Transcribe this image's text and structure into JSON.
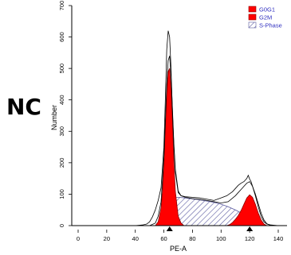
{
  "panel_label": "NC",
  "chart_data": {
    "type": "area",
    "title": "",
    "xlabel": "PE-A",
    "ylabel": "Number",
    "xlim": [
      -5,
      150
    ],
    "ylim": [
      0,
      700
    ],
    "x_ticks": [
      0,
      20,
      40,
      60,
      80,
      100,
      120,
      140
    ],
    "y_ticks": [
      0,
      100,
      200,
      300,
      400,
      500,
      600,
      700
    ],
    "grid": false,
    "legend_position": "top-right",
    "colors": {
      "G0G1": "#ff0000",
      "G2M": "#ff0000",
      "S-Phase": "#5a5aa0",
      "histogram": "#000000",
      "fit": "#000000"
    },
    "series": [
      {
        "name": "G0G1",
        "x": [
          54,
          56,
          58,
          59,
          60,
          61,
          62,
          63,
          64,
          65,
          66,
          67,
          68,
          70,
          72,
          74
        ],
        "y": [
          0,
          12,
          55,
          110,
          200,
          310,
          420,
          490,
          500,
          440,
          330,
          200,
          110,
          30,
          8,
          0
        ]
      },
      {
        "name": "G2M",
        "x": [
          104,
          106,
          108,
          110,
          112,
          114,
          116,
          118,
          120,
          122,
          124,
          126,
          128,
          130,
          132
        ],
        "y": [
          0,
          3,
          10,
          20,
          32,
          48,
          68,
          88,
          98,
          90,
          68,
          40,
          18,
          5,
          0
        ]
      },
      {
        "name": "S-Phase",
        "x": [
          58,
          60,
          62,
          65,
          70,
          75,
          80,
          85,
          90,
          95,
          100,
          105,
          110,
          115,
          120,
          124,
          128
        ],
        "y": [
          0,
          35,
          70,
          90,
          90,
          88,
          85,
          82,
          78,
          74,
          68,
          60,
          50,
          38,
          22,
          8,
          0
        ]
      },
      {
        "name": "Histogram",
        "x": [
          40,
          45,
          48,
          50,
          52,
          54,
          56,
          58,
          60,
          61,
          62,
          63,
          64,
          65,
          66,
          67,
          68,
          70,
          72,
          75,
          80,
          85,
          90,
          95,
          100,
          104,
          108,
          110,
          112,
          114,
          116,
          118,
          119,
          120,
          121,
          122,
          124,
          126,
          128,
          130,
          132,
          135,
          140
        ],
        "y": [
          0,
          2,
          5,
          12,
          28,
          50,
          80,
          120,
          250,
          400,
          560,
          620,
          600,
          500,
          360,
          250,
          170,
          105,
          95,
          92,
          90,
          88,
          84,
          80,
          88,
          95,
          108,
          118,
          128,
          135,
          140,
          150,
          160,
          148,
          140,
          125,
          95,
          60,
          30,
          12,
          5,
          2,
          0
        ]
      },
      {
        "name": "Fit",
        "x": [
          50,
          54,
          56,
          58,
          60,
          61,
          62,
          63,
          64,
          65,
          66,
          67,
          68,
          70,
          72,
          75,
          80,
          85,
          90,
          95,
          100,
          105,
          110,
          112,
          114,
          116,
          118,
          120,
          122,
          124,
          126,
          128,
          130,
          132,
          135
        ],
        "y": [
          0,
          8,
          30,
          75,
          215,
          330,
          450,
          525,
          540,
          475,
          370,
          260,
          180,
          110,
          95,
          90,
          86,
          83,
          80,
          76,
          72,
          76,
          95,
          105,
          115,
          125,
          135,
          140,
          125,
          100,
          70,
          40,
          18,
          6,
          0
        ]
      }
    ],
    "markers": [
      {
        "x": 64,
        "shape": "triangle-up"
      },
      {
        "x": 120,
        "shape": "triangle-up"
      }
    ],
    "legend": [
      {
        "label": "G0G1",
        "style": "solid"
      },
      {
        "label": "G2M",
        "style": "solid"
      },
      {
        "label": "S-Phase",
        "style": "hatched"
      }
    ]
  }
}
